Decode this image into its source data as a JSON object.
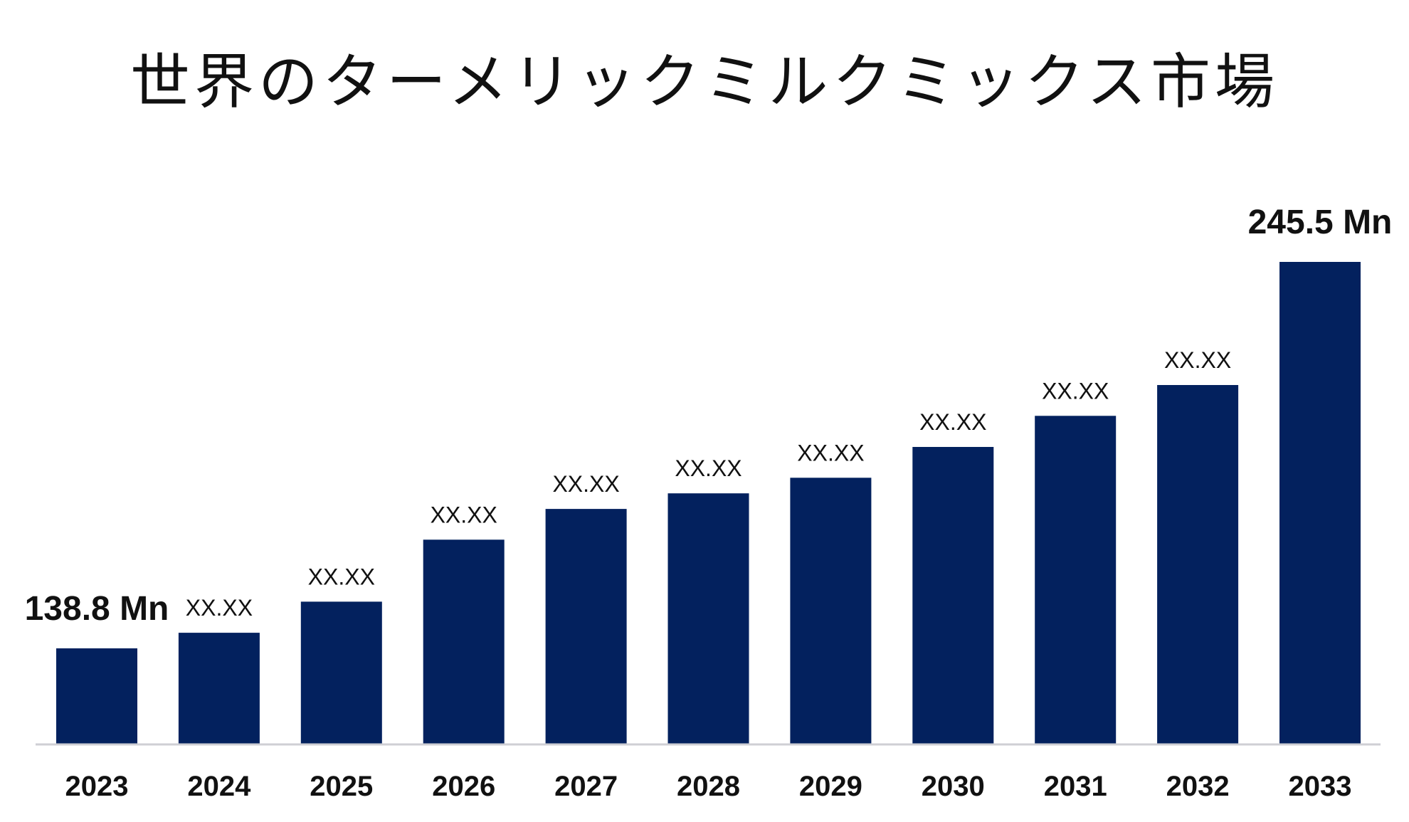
{
  "chart_data": {
    "type": "bar",
    "title": "世界のターメリックミルクミックス市場",
    "xlabel": "",
    "ylabel": "",
    "categories": [
      "2023",
      "2024",
      "2025",
      "2026",
      "2027",
      "2028",
      "2029",
      "2030",
      "2031",
      "2032",
      "2033"
    ],
    "values": [
      138.8,
      143.1,
      151.7,
      168.8,
      177.3,
      181.6,
      185.9,
      194.4,
      203.0,
      211.5,
      245.5
    ],
    "data_labels": [
      "138.8 Mn",
      "XX.XX",
      "XX.XX",
      "XX.XX",
      "XX.XX",
      "XX.XX",
      "XX.XX",
      "XX.XX",
      "XX.XX",
      "XX.XX",
      "245.5 Mn"
    ],
    "grid": false,
    "legend": "none",
    "bar_color": "#03215e"
  }
}
